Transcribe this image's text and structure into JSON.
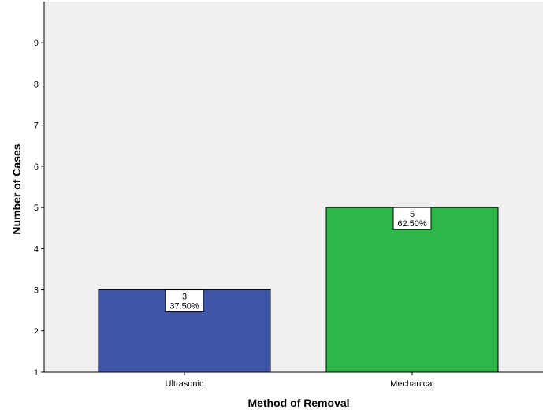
{
  "chart_data": {
    "type": "bar",
    "categories": [
      "Ultrasonic",
      "Mechanical"
    ],
    "values": [
      3,
      5
    ],
    "data_labels": [
      {
        "count": "3",
        "percent": "37.50%"
      },
      {
        "count": "5",
        "percent": "62.50%"
      }
    ],
    "colors": [
      "#3f56a8",
      "#2fb84a"
    ],
    "plot_background": "#efefef",
    "xlabel": "Method of Removal",
    "ylabel": "Number of Cases",
    "ylim": [
      1,
      10
    ],
    "yticks": [
      1,
      2,
      3,
      4,
      5,
      6,
      7,
      8,
      9
    ],
    "grid": false,
    "legend": "none"
  }
}
